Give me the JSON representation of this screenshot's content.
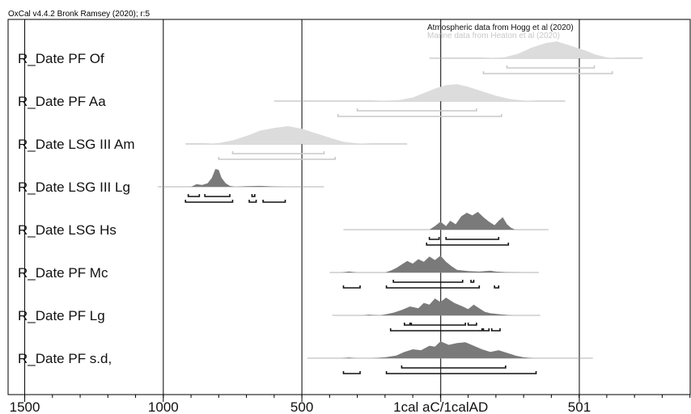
{
  "header": {
    "text": "OxCal v4.4.2 Bronk Ramsey (2020); r:5"
  },
  "chart_data": {
    "type": "area",
    "title": "",
    "xlabel": "1cal aC/1calAD",
    "xlim": [
      -1560,
      901
    ],
    "x_ticks": [
      {
        "value": -1500,
        "label": "1500"
      },
      {
        "value": -1000,
        "label": "1000"
      },
      {
        "value": -500,
        "label": "500"
      },
      {
        "value": 1,
        "label": "1cal aC/1calAD"
      },
      {
        "value": 501,
        "label": "501"
      }
    ],
    "minor_tick_step": 100,
    "legend": [
      {
        "text": "Atmospheric data from Hogg et al (2020)",
        "style": "dark"
      },
      {
        "text": "Marine data from Heaton et al (2020)",
        "style": "light"
      }
    ],
    "colors": {
      "marine": "#dcdcdc",
      "marine_range": "#c8c8c8",
      "atmospheric": "#7a7a7a",
      "atmospheric_range": "#111111"
    },
    "series": [
      {
        "name": "R_Date PF Of",
        "curve": "marine",
        "extent": [
          -40,
          730
        ],
        "density": [
          [
            -40,
            0
          ],
          [
            150,
            0
          ],
          [
            230,
            0.05
          ],
          [
            280,
            0.25
          ],
          [
            330,
            0.6
          ],
          [
            380,
            0.85
          ],
          [
            420,
            0.95
          ],
          [
            470,
            0.7
          ],
          [
            520,
            0.45
          ],
          [
            560,
            0.2
          ],
          [
            600,
            0.05
          ],
          [
            640,
            0
          ],
          [
            730,
            0
          ]
        ],
        "ranges": [
          [
            [
              240,
              555
            ]
          ],
          [
            [
              155,
              620
            ]
          ]
        ]
      },
      {
        "name": "R_Date PF Aa",
        "curve": "marine",
        "extent": [
          -600,
          450
        ],
        "density": [
          [
            -600,
            0
          ],
          [
            -250,
            0
          ],
          [
            -150,
            0.05
          ],
          [
            -100,
            0.2
          ],
          [
            -60,
            0.45
          ],
          [
            -20,
            0.7
          ],
          [
            20,
            0.9
          ],
          [
            60,
            0.95
          ],
          [
            100,
            0.8
          ],
          [
            150,
            0.55
          ],
          [
            200,
            0.3
          ],
          [
            250,
            0.12
          ],
          [
            300,
            0.03
          ],
          [
            350,
            0
          ],
          [
            450,
            0
          ]
        ],
        "ranges": [
          [
            [
              -300,
              130
            ]
          ],
          [
            [
              -370,
              220
            ]
          ]
        ]
      },
      {
        "name": "R_Date LSG III Am",
        "curve": "marine",
        "extent": [
          -920,
          -120
        ],
        "density": [
          [
            -920,
            0
          ],
          [
            -850,
            0
          ],
          [
            -800,
            0.05
          ],
          [
            -750,
            0.2
          ],
          [
            -700,
            0.45
          ],
          [
            -650,
            0.75
          ],
          [
            -600,
            0.9
          ],
          [
            -550,
            1
          ],
          [
            -500,
            0.85
          ],
          [
            -450,
            0.6
          ],
          [
            -400,
            0.35
          ],
          [
            -350,
            0.12
          ],
          [
            -300,
            0.03
          ],
          [
            -250,
            0
          ],
          [
            -120,
            0
          ]
        ],
        "ranges": [
          [
            [
              -750,
              -420
            ]
          ],
          [
            [
              -800,
              -380
            ]
          ]
        ]
      },
      {
        "name": "R_Date LSG III Lg",
        "curve": "atmospheric",
        "extent": [
          -1020,
          -420
        ],
        "density": [
          [
            -1020,
            0
          ],
          [
            -900,
            0
          ],
          [
            -880,
            0.15
          ],
          [
            -860,
            0.1
          ],
          [
            -840,
            0.2
          ],
          [
            -825,
            0.5
          ],
          [
            -812,
            1
          ],
          [
            -800,
            0.95
          ],
          [
            -790,
            0.5
          ],
          [
            -775,
            0.2
          ],
          [
            -760,
            0.05
          ],
          [
            -740,
            0
          ],
          [
            -700,
            0.03
          ],
          [
            -650,
            0.05
          ],
          [
            -600,
            0.02
          ],
          [
            -560,
            0
          ],
          [
            -420,
            0
          ]
        ],
        "ranges": [
          [
            [
              -910,
              -870
            ],
            [
              -850,
              -760
            ],
            [
              -680,
              -670
            ]
          ],
          [
            [
              -920,
              -750
            ],
            [
              -690,
              -665
            ],
            [
              -640,
              -560
            ]
          ]
        ]
      },
      {
        "name": "R_Date LSG Hs",
        "curve": "atmospheric",
        "extent": [
          -350,
          390
        ],
        "density": [
          [
            -350,
            0
          ],
          [
            -40,
            0
          ],
          [
            -20,
            0.2
          ],
          [
            0,
            0.45
          ],
          [
            20,
            0.2
          ],
          [
            35,
            0.5
          ],
          [
            55,
            0.3
          ],
          [
            75,
            0.75
          ],
          [
            95,
            0.95
          ],
          [
            115,
            0.8
          ],
          [
            135,
            1
          ],
          [
            155,
            0.7
          ],
          [
            175,
            0.45
          ],
          [
            195,
            0.25
          ],
          [
            210,
            0.5
          ],
          [
            225,
            0.7
          ],
          [
            240,
            0.3
          ],
          [
            255,
            0.1
          ],
          [
            270,
            0
          ],
          [
            390,
            0
          ]
        ],
        "ranges": [
          [
            [
              -40,
              -5
            ],
            [
              20,
              210
            ]
          ],
          [
            [
              -50,
              245
            ]
          ]
        ]
      },
      {
        "name": "R_Date PF Mc",
        "curve": "atmospheric",
        "extent": [
          -400,
          355
        ],
        "density": [
          [
            -400,
            0
          ],
          [
            -360,
            0
          ],
          [
            -330,
            0.06
          ],
          [
            -300,
            0
          ],
          [
            -200,
            0
          ],
          [
            -180,
            0.1
          ],
          [
            -160,
            0.25
          ],
          [
            -140,
            0.45
          ],
          [
            -120,
            0.65
          ],
          [
            -100,
            0.5
          ],
          [
            -80,
            0.75
          ],
          [
            -60,
            0.6
          ],
          [
            -40,
            0.9
          ],
          [
            -20,
            0.7
          ],
          [
            0,
            0.95
          ],
          [
            20,
            0.6
          ],
          [
            40,
            0.35
          ],
          [
            60,
            0.15
          ],
          [
            100,
            0.08
          ],
          [
            140,
            0.05
          ],
          [
            180,
            0.1
          ],
          [
            200,
            0.05
          ],
          [
            240,
            0.02
          ],
          [
            300,
            0
          ],
          [
            355,
            0
          ]
        ],
        "ranges": [
          [
            [
              -170,
              80
            ],
            [
              110,
              120
            ]
          ],
          [
            [
              -350,
              -290
            ],
            [
              -195,
              140
            ],
            [
              195,
              210
            ]
          ]
        ]
      },
      {
        "name": "R_Date PF Lg",
        "curve": "atmospheric",
        "extent": [
          -390,
          360
        ],
        "density": [
          [
            -390,
            0
          ],
          [
            -280,
            0
          ],
          [
            -260,
            0.04
          ],
          [
            -220,
            0
          ],
          [
            -200,
            0.05
          ],
          [
            -170,
            0.15
          ],
          [
            -140,
            0.3
          ],
          [
            -110,
            0.5
          ],
          [
            -80,
            0.4
          ],
          [
            -60,
            0.7
          ],
          [
            -40,
            0.6
          ],
          [
            -20,
            0.95
          ],
          [
            0,
            0.75
          ],
          [
            20,
            1
          ],
          [
            50,
            0.7
          ],
          [
            80,
            0.5
          ],
          [
            100,
            0.35
          ],
          [
            120,
            0.6
          ],
          [
            140,
            0.4
          ],
          [
            160,
            0.2
          ],
          [
            180,
            0.12
          ],
          [
            220,
            0.05
          ],
          [
            260,
            0
          ],
          [
            360,
            0
          ]
        ],
        "ranges": [
          [
            [
              -130,
              -110
            ],
            [
              -105,
              90
            ],
            [
              100,
              130
            ]
          ],
          [
            [
              -180,
              150
            ],
            [
              155,
              175
            ],
            [
              185,
              215
            ]
          ]
        ]
      },
      {
        "name": "R_Date PF s.d,",
        "curve": "atmospheric",
        "extent": [
          -480,
          550
        ],
        "density": [
          [
            -480,
            0
          ],
          [
            -360,
            0
          ],
          [
            -330,
            0.04
          ],
          [
            -300,
            0
          ],
          [
            -250,
            0
          ],
          [
            -200,
            0.05
          ],
          [
            -160,
            0.15
          ],
          [
            -130,
            0.35
          ],
          [
            -100,
            0.5
          ],
          [
            -70,
            0.45
          ],
          [
            -40,
            0.7
          ],
          [
            -20,
            0.65
          ],
          [
            0,
            0.95
          ],
          [
            30,
            0.75
          ],
          [
            60,
            0.85
          ],
          [
            90,
            0.9
          ],
          [
            120,
            0.7
          ],
          [
            150,
            0.5
          ],
          [
            180,
            0.35
          ],
          [
            210,
            0.45
          ],
          [
            240,
            0.3
          ],
          [
            270,
            0.15
          ],
          [
            300,
            0.05
          ],
          [
            340,
            0
          ],
          [
            550,
            0
          ]
        ],
        "ranges": [
          [
            [
              -140,
              235
            ]
          ],
          [
            [
              -350,
              -290
            ],
            [
              -195,
              345
            ]
          ]
        ]
      }
    ]
  }
}
